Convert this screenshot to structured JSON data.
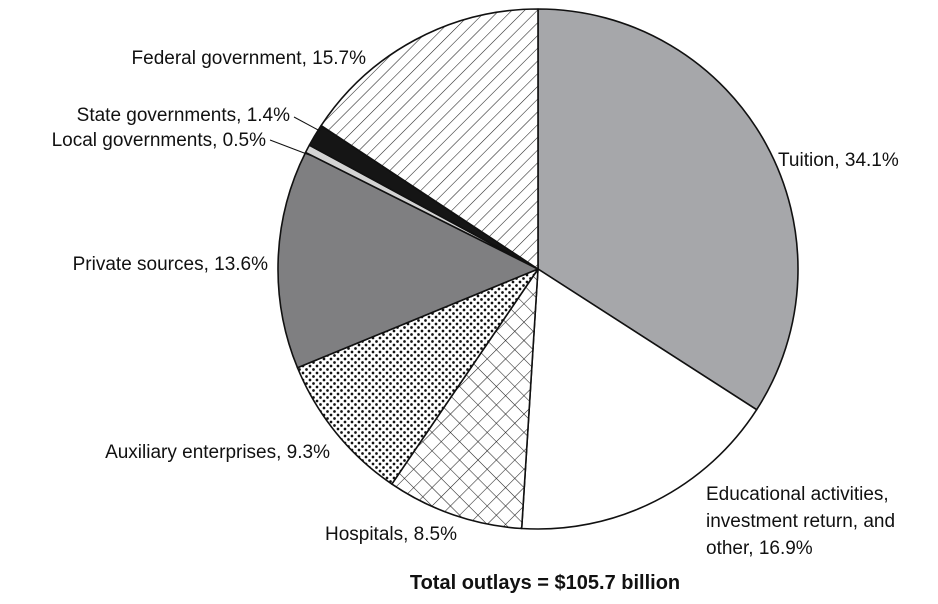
{
  "chart_data": {
    "type": "pie",
    "footer": "Total outlays = $105.7 billion",
    "slices": [
      {
        "label_lines": [
          "Tuition, 34.1%"
        ],
        "value": 34.1,
        "fill": "solid-gray",
        "color": "#a6a7aa"
      },
      {
        "label_lines": [
          "Educational activities,",
          "investment return, and",
          "other, 16.9%"
        ],
        "value": 16.9,
        "fill": "solid-white",
        "color": "#ffffff"
      },
      {
        "label_lines": [
          "Hospitals, 8.5%"
        ],
        "value": 8.5,
        "fill": "crosshatch",
        "color": "#ffffff"
      },
      {
        "label_lines": [
          "Auxiliary enterprises, 9.3%"
        ],
        "value": 9.3,
        "fill": "dots",
        "color": "#ffffff"
      },
      {
        "label_lines": [
          "Private sources, 13.6%"
        ],
        "value": 13.6,
        "fill": "solid-dark-gray",
        "color": "#7f7f81"
      },
      {
        "label_lines": [
          "Local governments, 0.5%"
        ],
        "value": 0.5,
        "fill": "solid-light-gray",
        "color": "#d3d3d3"
      },
      {
        "label_lines": [
          "State governments, 1.4%"
        ],
        "value": 1.4,
        "fill": "solid-black",
        "color": "#151515"
      },
      {
        "label_lines": [
          "Federal government, 15.7%"
        ],
        "value": 15.7,
        "fill": "diagonal-hatch",
        "color": "#ffffff"
      }
    ]
  }
}
